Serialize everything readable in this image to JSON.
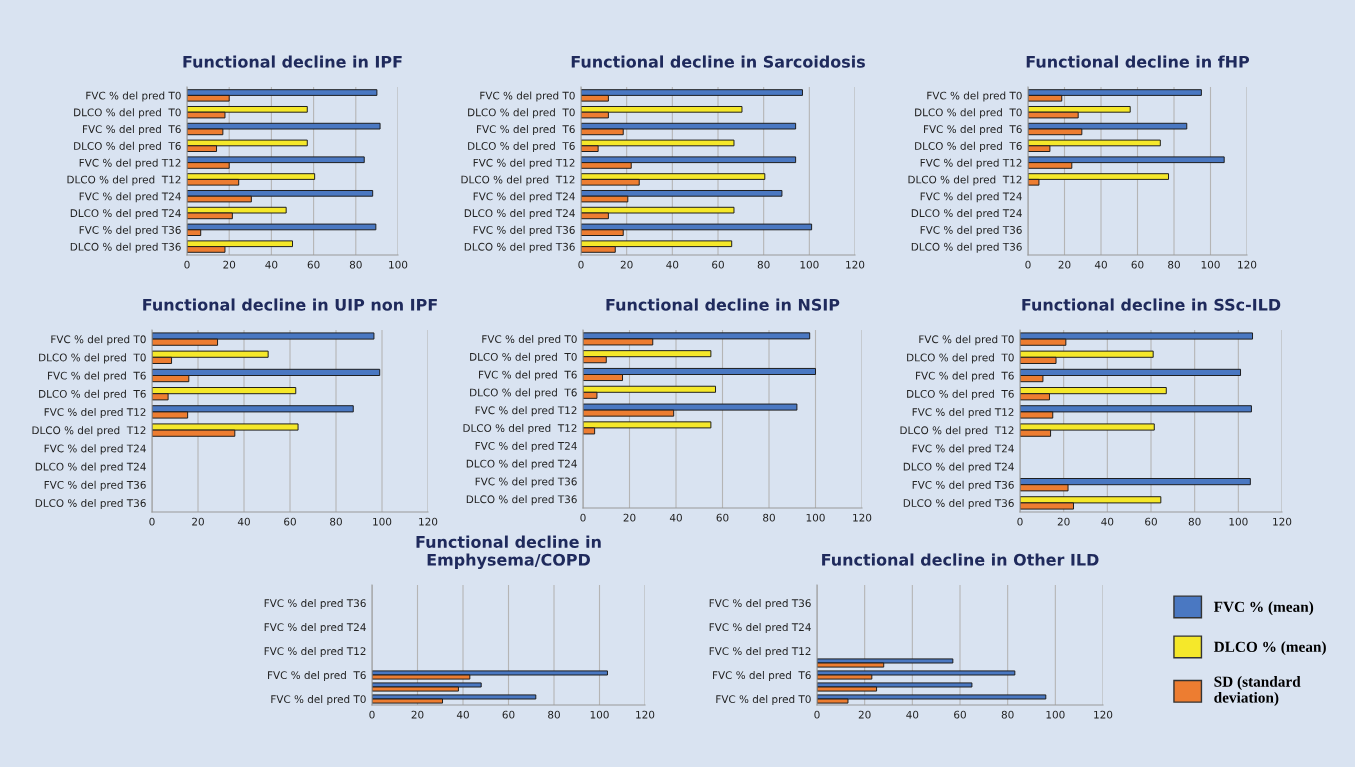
{
  "chart_data": [
    {
      "type": "bar",
      "orientation": "horizontal",
      "title": "Functional decline in IPF",
      "categories": [
        "FVC % del pred T0",
        "DLCO % del pred  T0",
        "FVC % del pred  T6",
        "DLCO % del pred  T6",
        "FVC % del pred T12",
        "DLCO % del pred  T12",
        "FVC % del pred T24",
        "DLCO % del pred T24",
        "FVC % del pred T36",
        "DLCO % del pred T36"
      ],
      "xlim": [
        0,
        100
      ],
      "xticks": [
        0,
        20,
        40,
        60,
        80,
        100
      ],
      "grid": "x",
      "series": [
        {
          "color": "#4a78c2",
          "values": [
            90,
            null,
            91.5,
            null,
            84,
            null,
            88,
            null,
            89.5,
            null
          ]
        },
        {
          "color": "#f5e82a",
          "values": [
            null,
            57,
            null,
            57,
            null,
            60.5,
            null,
            47,
            null,
            50
          ]
        },
        {
          "color": "#ed7d31",
          "values": [
            20,
            18,
            17,
            14,
            20,
            24.5,
            30.5,
            21.5,
            6.5,
            18
          ]
        }
      ]
    },
    {
      "type": "bar",
      "orientation": "horizontal",
      "title": "Functional decline in Sarcoidosis",
      "categories": [
        "FVC % del pred T0",
        "DLCO % del pred  T0",
        "FVC % del pred  T6",
        "DLCO % del pred  T6",
        "FVC % del pred T12",
        "DLCO % del pred  T12",
        "FVC % del pred T24",
        "DLCO % del pred T24",
        "FVC % del pred T36",
        "DLCO % del pred T36"
      ],
      "xlim": [
        0,
        120
      ],
      "xticks": [
        0,
        20,
        40,
        60,
        80,
        100,
        120
      ],
      "grid": "x",
      "series": [
        {
          "color": "#4a78c2",
          "values": [
            97,
            null,
            94,
            null,
            94,
            null,
            88,
            null,
            101,
            null
          ]
        },
        {
          "color": "#f5e82a",
          "values": [
            null,
            70.5,
            null,
            67,
            null,
            80.5,
            null,
            67,
            null,
            66
          ]
        },
        {
          "color": "#ed7d31",
          "values": [
            12,
            12,
            18.5,
            7.5,
            22,
            25.5,
            20.5,
            12,
            18.5,
            15
          ]
        }
      ]
    },
    {
      "type": "bar",
      "orientation": "horizontal",
      "title": "Functional decline in fHP",
      "categories": [
        "FVC % del pred T0",
        "DLCO % del pred  T0",
        "FVC % del pred  T6",
        "DLCO % del pred  T6",
        "FVC % del pred T12",
        "DLCO % del pred  T12",
        "FVC % del pred T24",
        "DLCO % del pred T24",
        "FVC % del pred T36",
        "DLCO % del pred T36"
      ],
      "xlim": [
        0,
        120
      ],
      "xticks": [
        0,
        20,
        40,
        60,
        80,
        100,
        120
      ],
      "grid": "x",
      "series": [
        {
          "color": "#4a78c2",
          "values": [
            95,
            null,
            87,
            null,
            107.5,
            null,
            null,
            null,
            null,
            null
          ]
        },
        {
          "color": "#f5e82a",
          "values": [
            null,
            56,
            null,
            72.5,
            null,
            77,
            null,
            null,
            null,
            null
          ]
        },
        {
          "color": "#ed7d31",
          "values": [
            18.5,
            27.5,
            29.5,
            12,
            24,
            6,
            null,
            null,
            null,
            null
          ]
        }
      ]
    },
    {
      "type": "bar",
      "orientation": "horizontal",
      "title": "Functional decline in UIP non IPF",
      "categories": [
        "FVC % del pred T0",
        "DLCO % del pred  T0",
        "FVC % del pred  T6",
        "DLCO % del pred  T6",
        "FVC % del pred T12",
        "DLCO % del pred  T12",
        "FVC % del pred T24",
        "DLCO % del pred T24",
        "FVC % del pred T36",
        "DLCO % del pred T36"
      ],
      "xlim": [
        0,
        120
      ],
      "xticks": [
        0,
        20,
        40,
        60,
        80,
        100,
        120
      ],
      "grid": "x",
      "series": [
        {
          "color": "#4a78c2",
          "values": [
            96.5,
            null,
            99,
            null,
            87.5,
            null,
            null,
            null,
            null,
            null
          ]
        },
        {
          "color": "#f5e82a",
          "values": [
            null,
            50.5,
            null,
            62.5,
            null,
            63.5,
            null,
            null,
            null,
            null
          ]
        },
        {
          "color": "#ed7d31",
          "values": [
            28.5,
            8.5,
            16,
            7,
            15.5,
            36,
            null,
            null,
            null,
            null
          ]
        }
      ]
    },
    {
      "type": "bar",
      "orientation": "horizontal",
      "title": "Functional decline in NSIP",
      "categories": [
        "FVC % del pred T0",
        "DLCO % del pred  T0",
        "FVC % del pred  T6",
        "DLCO % del pred  T6",
        "FVC % del pred T12",
        "DLCO % del pred  T12",
        "FVC % del pred T24",
        "DLCO % del pred T24",
        "FVC % del pred T36",
        "DLCO % del pred T36"
      ],
      "xlim": [
        0,
        120
      ],
      "xticks": [
        0,
        20,
        40,
        60,
        80,
        100,
        120
      ],
      "grid": "x",
      "series": [
        {
          "color": "#4a78c2",
          "values": [
            97.5,
            null,
            100,
            null,
            92,
            null,
            null,
            null,
            null,
            null
          ]
        },
        {
          "color": "#f5e82a",
          "values": [
            null,
            55,
            null,
            57,
            null,
            55,
            null,
            null,
            null,
            null
          ]
        },
        {
          "color": "#ed7d31",
          "values": [
            30,
            10,
            17,
            6,
            39,
            5,
            null,
            null,
            null,
            null
          ]
        }
      ]
    },
    {
      "type": "bar",
      "orientation": "horizontal",
      "title": "Functional decline in SSc-ILD",
      "categories": [
        "FVC % del pred T0",
        "DLCO % del pred  T0",
        "FVC % del pred  T6",
        "DLCO % del pred  T6",
        "FVC % del pred T12",
        "DLCO % del pred  T12",
        "FVC % del pred T24",
        "DLCO % del pred T24",
        "FVC % del pred T36",
        "DLCO % del pred T36"
      ],
      "xlim": [
        0,
        120
      ],
      "xticks": [
        0,
        20,
        40,
        60,
        80,
        100,
        120
      ],
      "grid": "x",
      "series": [
        {
          "color": "#4a78c2",
          "values": [
            106.5,
            null,
            101,
            null,
            106,
            null,
            null,
            null,
            105.5,
            null
          ]
        },
        {
          "color": "#f5e82a",
          "values": [
            null,
            61,
            null,
            67,
            null,
            61.5,
            null,
            null,
            null,
            64.5
          ]
        },
        {
          "color": "#ed7d31",
          "values": [
            21,
            16.5,
            10.5,
            13.5,
            15,
            14,
            null,
            null,
            22,
            24.5
          ]
        }
      ]
    },
    {
      "type": "bar",
      "orientation": "horizontal",
      "title": "Functional decline in\nEmphysema/COPD",
      "categories": [
        null,
        "FVC % del pred T36",
        null,
        "FVC % del pred T24",
        null,
        "FVC % del pred T12",
        null,
        "FVC % del pred  T6",
        null,
        "FVC % del pred T0"
      ],
      "xlim": [
        0,
        120
      ],
      "xticks": [
        0,
        20,
        40,
        60,
        80,
        100,
        120
      ],
      "grid": "x",
      "series": [
        {
          "color": "#4a78c2",
          "values": [
            null,
            null,
            null,
            null,
            null,
            null,
            null,
            103.5,
            48,
            72
          ]
        },
        {
          "color": "#ed7d31",
          "values": [
            null,
            null,
            null,
            null,
            null,
            null,
            null,
            43,
            38,
            31
          ]
        }
      ]
    },
    {
      "type": "bar",
      "orientation": "horizontal",
      "title": "Functional decline in Other ILD",
      "categories": [
        null,
        "FVC % del pred T36",
        null,
        "FVC % del pred T24",
        null,
        "FVC % del pred T12",
        null,
        "FVC % del pred  T6",
        null,
        "FVC % del pred T0"
      ],
      "xlim": [
        0,
        120
      ],
      "xticks": [
        0,
        20,
        40,
        60,
        80,
        100,
        120
      ],
      "grid": "x",
      "legend": "right",
      "series": [
        {
          "name": "FVC % (mean)",
          "color": "#4a78c2",
          "values": [
            null,
            null,
            null,
            null,
            null,
            null,
            57,
            83,
            65,
            96
          ]
        },
        {
          "name": "DLCO % (mean)",
          "color": "#f5e82a",
          "values": [
            null,
            null,
            null,
            null,
            null,
            null,
            null,
            null,
            null,
            null
          ]
        },
        {
          "name": "SD (standard\ndeviation)",
          "color": "#ed7d31",
          "values": [
            null,
            null,
            null,
            null,
            null,
            null,
            28,
            23,
            25,
            13
          ]
        }
      ]
    }
  ]
}
